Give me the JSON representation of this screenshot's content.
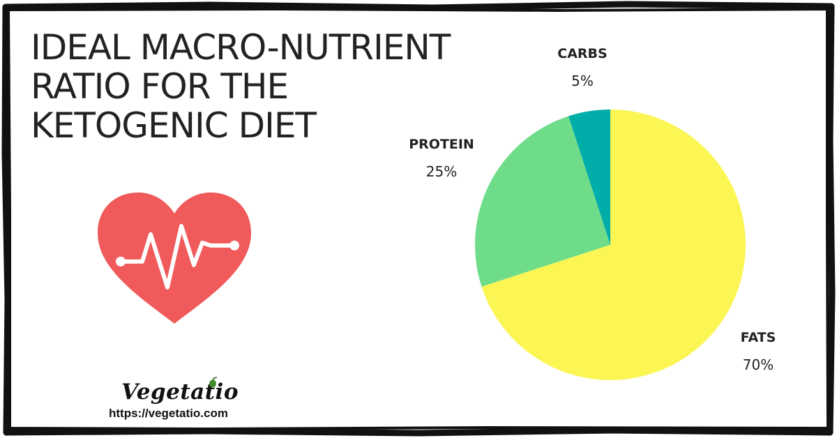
{
  "title": {
    "lines": [
      "IDEAL MACRO-NUTRIENT",
      "RATIO FOR THE",
      "KETOGENIC DIET"
    ]
  },
  "brand": {
    "name": "Vegetatio",
    "url": "https://vegetatio.com"
  },
  "colors": {
    "heart": "#f05a5a",
    "fats": "#fbf654",
    "protein": "#6fdc8a",
    "carbs": "#00ada9",
    "frame": "#111111"
  },
  "icons": [
    "heart-pulse-icon",
    "leaf-icon"
  ],
  "chart_data": {
    "type": "pie",
    "title": "",
    "slices": [
      {
        "name": "FATS",
        "value": 70,
        "label": "70%",
        "color": "#fbf654"
      },
      {
        "name": "PROTEIN",
        "value": 25,
        "label": "25%",
        "color": "#6fdc8a"
      },
      {
        "name": "CARBS",
        "value": 5,
        "label": "5%",
        "color": "#00ada9"
      }
    ],
    "start": "12 o'clock",
    "direction": "clockwise"
  }
}
